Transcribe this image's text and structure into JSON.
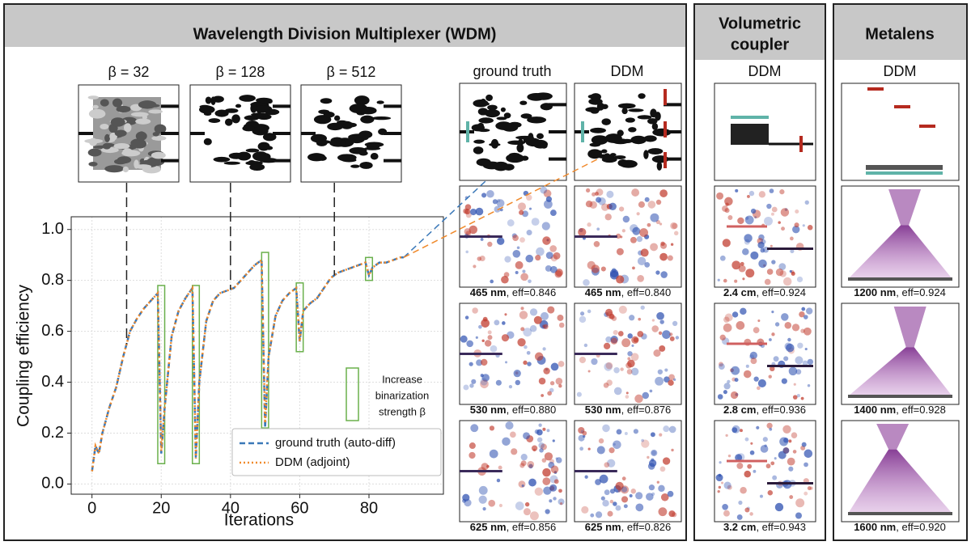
{
  "panels": {
    "wdm": {
      "title": "Wavelength Division Multiplexer (WDM)",
      "columns": [
        {
          "header": "ground truth",
          "fields": [
            {
              "bold": "465 nm",
              "text": ", eff=0.846"
            },
            {
              "bold": "530 nm",
              "text": ", eff=0.880"
            },
            {
              "bold": "625 nm",
              "text": ", eff=0.856"
            }
          ]
        },
        {
          "header": "DDM",
          "fields": [
            {
              "bold": "465 nm",
              "text": ", eff=0.840"
            },
            {
              "bold": "530 nm",
              "text": ", eff=0.876"
            },
            {
              "bold": "625 nm",
              "text": ", eff=0.826"
            }
          ]
        }
      ]
    },
    "volumetric": {
      "title": [
        "Volumetric",
        "coupler"
      ],
      "header": "DDM",
      "fields": [
        {
          "bold": "2.4 cm",
          "text": ", eff=0.924"
        },
        {
          "bold": "2.8 cm",
          "text": ", eff=0.936"
        },
        {
          "bold": "3.2 cm",
          "text": ", eff=0.943"
        }
      ]
    },
    "metalens": {
      "title": "Metalens",
      "header": "DDM",
      "fields": [
        {
          "bold": "1200 nm",
          "text": ", eff=0.924"
        },
        {
          "bold": "1400 nm",
          "text": ", eff=0.928"
        },
        {
          "bold": "1600 nm",
          "text": ", eff=0.920"
        }
      ]
    }
  },
  "chart_data": {
    "type": "line",
    "x_label": "Iterations",
    "y_label": "Coupling efficiency",
    "x": [
      0,
      1,
      2,
      3,
      5,
      7,
      9,
      11,
      13,
      15,
      17,
      19,
      20,
      21,
      23,
      25,
      27,
      29,
      30,
      31,
      33,
      35,
      37,
      39,
      41,
      43,
      45,
      47,
      49,
      50,
      51,
      53,
      55,
      57,
      59,
      60,
      61,
      63,
      65,
      67,
      69,
      71,
      73,
      75,
      77,
      79,
      80,
      81,
      83,
      85,
      87,
      89,
      90
    ],
    "series": [
      {
        "name": "ground truth (auto-diff)",
        "color": "#3a78b8",
        "dash": "dashed",
        "values": [
          0.05,
          0.15,
          0.12,
          0.2,
          0.3,
          0.38,
          0.5,
          0.6,
          0.65,
          0.69,
          0.72,
          0.75,
          0.12,
          0.3,
          0.58,
          0.68,
          0.73,
          0.77,
          0.1,
          0.4,
          0.64,
          0.72,
          0.75,
          0.76,
          0.77,
          0.8,
          0.83,
          0.86,
          0.88,
          0.22,
          0.5,
          0.66,
          0.72,
          0.75,
          0.77,
          0.56,
          0.68,
          0.71,
          0.73,
          0.77,
          0.81,
          0.83,
          0.84,
          0.85,
          0.86,
          0.87,
          0.82,
          0.85,
          0.87,
          0.87,
          0.88,
          0.89,
          0.89
        ]
      },
      {
        "name": "DDM (adjoint)",
        "color": "#f08a2c",
        "dash": "dotted",
        "values": [
          0.05,
          0.15,
          0.12,
          0.2,
          0.3,
          0.38,
          0.5,
          0.6,
          0.65,
          0.69,
          0.72,
          0.75,
          0.13,
          0.3,
          0.58,
          0.68,
          0.73,
          0.77,
          0.1,
          0.4,
          0.64,
          0.72,
          0.75,
          0.76,
          0.77,
          0.8,
          0.83,
          0.86,
          0.88,
          0.24,
          0.5,
          0.66,
          0.72,
          0.75,
          0.77,
          0.56,
          0.68,
          0.71,
          0.73,
          0.77,
          0.81,
          0.83,
          0.84,
          0.85,
          0.86,
          0.87,
          0.82,
          0.85,
          0.87,
          0.87,
          0.88,
          0.89,
          0.89
        ]
      }
    ],
    "xlim": [
      -6,
      101.5
    ],
    "ylim": [
      -0.04,
      1.05
    ],
    "xticks": [
      0,
      20,
      40,
      60,
      80
    ],
    "yticks": [
      {
        "value": 0,
        "label": "0.0"
      },
      {
        "value": 0.2,
        "label": "0.2"
      },
      {
        "value": 0.4,
        "label": "0.4"
      },
      {
        "value": 0.6,
        "label": "0.6"
      },
      {
        "value": 0.8,
        "label": "0.8"
      },
      {
        "value": 1,
        "label": "1.0"
      }
    ],
    "grid": true,
    "stage_markers": [
      {
        "label": "β = 32",
        "x": 10
      },
      {
        "label": "β = 128",
        "x": 40
      },
      {
        "label": "β = 512",
        "x": 70
      }
    ],
    "highlight_color": "#6ab04c",
    "highlights": [
      {
        "x": [
          19,
          21
        ],
        "y": [
          0.08,
          0.78
        ]
      },
      {
        "x": [
          29,
          31
        ],
        "y": [
          0.08,
          0.78
        ]
      },
      {
        "x": [
          49,
          51
        ],
        "y": [
          0.22,
          0.91
        ]
      },
      {
        "x": [
          59,
          61
        ],
        "y": [
          0.52,
          0.79
        ]
      },
      {
        "x": [
          79,
          81
        ],
        "y": [
          0.8,
          0.89
        ]
      }
    ],
    "highlight_note": [
      "Increase",
      "binarization",
      "strength β"
    ]
  }
}
